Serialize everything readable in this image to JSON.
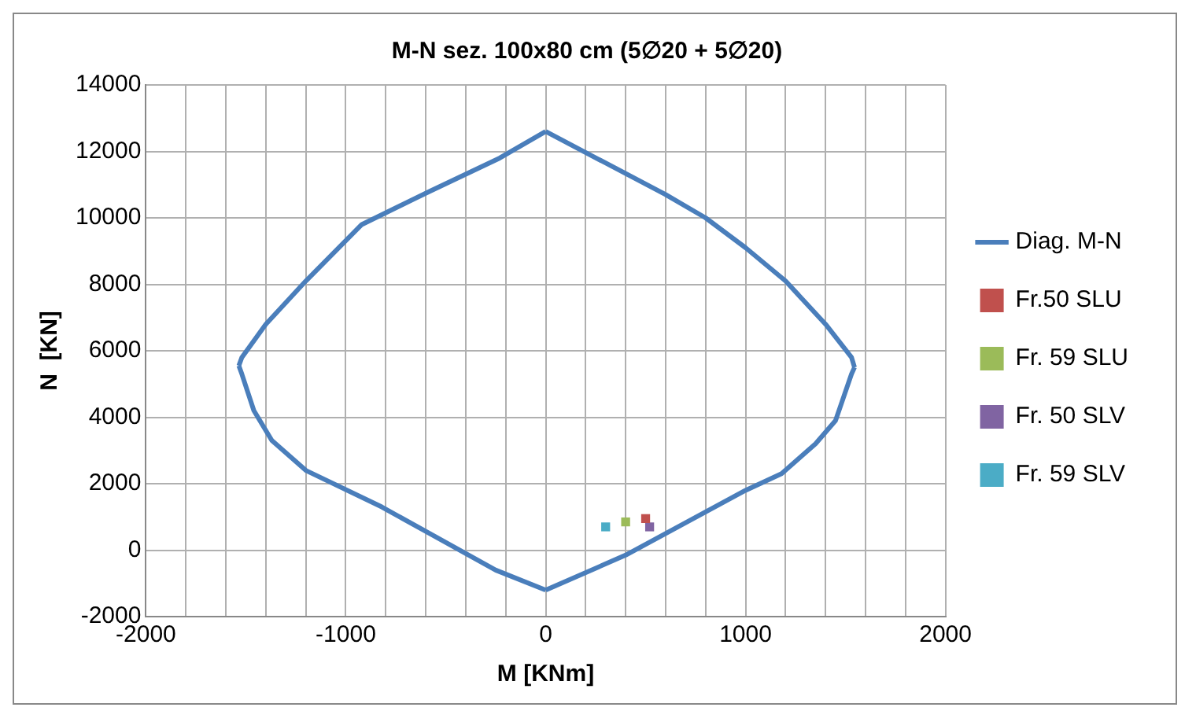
{
  "chart_data": {
    "type": "line",
    "title": "M-N sez. 100x80 cm (5∅20 + 5∅20)",
    "xlabel": "M [KNm]",
    "ylabel": "N  [KN]",
    "xlim": [
      -2000,
      2000
    ],
    "ylim": [
      -2000,
      14000
    ],
    "xticks": [
      -2000,
      {
        "value": -1800,
        "label": null
      },
      {
        "value": -1600,
        "label": null
      },
      {
        "value": -1400,
        "label": null
      },
      {
        "value": -1200,
        "label": null
      },
      -1000,
      {
        "value": -800,
        "label": null
      },
      {
        "value": -600,
        "label": null
      },
      {
        "value": -400,
        "label": null
      },
      {
        "value": -200,
        "label": null
      },
      0,
      {
        "value": 200,
        "label": null
      },
      {
        "value": 400,
        "label": null
      },
      {
        "value": 600,
        "label": null
      },
      {
        "value": 800,
        "label": null
      },
      1000,
      {
        "value": 1200,
        "label": null
      },
      {
        "value": 1400,
        "label": null
      },
      {
        "value": 1600,
        "label": null
      },
      {
        "value": 1800,
        "label": null
      },
      2000
    ],
    "yticks": [
      -2000,
      0,
      2000,
      4000,
      6000,
      8000,
      10000,
      12000,
      14000
    ],
    "grid": true,
    "legend": "right",
    "marker": "square",
    "series": [
      {
        "name": "Diag. M-N",
        "marker": "none",
        "color": "#4a7ebb",
        "x": [
          0,
          600,
          800,
          1000,
          1200,
          1400,
          1530,
          1545
        ],
        "values": [
          12600,
          10700,
          10000,
          9100,
          8100,
          6800,
          5800,
          5500
        ]
      },
      {
        "marker": "none",
        "color": "#4a7ebb",
        "x": [
          1545,
          1530,
          1450,
          1350,
          1180,
          1000,
          600,
          400,
          0
        ],
        "values": [
          5500,
          5300,
          3900,
          3200,
          2300,
          1800,
          500,
          -150,
          -1200
        ]
      },
      {
        "marker": "none",
        "color": "#4a7ebb",
        "x": [
          0,
          -250,
          -580,
          -820,
          -1200,
          -1370,
          -1460,
          -1520,
          -1535
        ],
        "values": [
          -1200,
          -600,
          500,
          1300,
          2400,
          3300,
          4200,
          5300,
          5550
        ]
      },
      {
        "marker": "none",
        "color": "#4a7ebb",
        "x": [
          -1535,
          -1520,
          -1400,
          -1200,
          -920,
          -580,
          -230,
          0
        ],
        "values": [
          5550,
          5800,
          6800,
          8100,
          9800,
          10800,
          11800,
          12600
        ]
      },
      {
        "name": "Fr.50 SLU",
        "type": "scatter",
        "color": "#c0504d",
        "x": [
          500
        ],
        "values": [
          950
        ]
      },
      {
        "name": "Fr. 59 SLU",
        "type": "scatter",
        "color": "#9bbb59",
        "x": [
          400
        ],
        "values": [
          850
        ]
      },
      {
        "name": "Fr. 50 SLV",
        "type": "scatter",
        "color": "#8064a2",
        "x": [
          520
        ],
        "values": [
          700
        ]
      },
      {
        "name": "Fr. 59 SLV",
        "type": "scatter",
        "color": "#4bacc6",
        "x": [
          300
        ],
        "values": [
          700
        ]
      }
    ]
  }
}
